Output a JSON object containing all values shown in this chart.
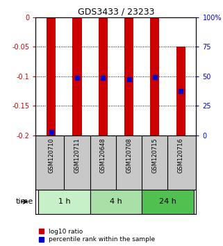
{
  "title": "GDS3433 / 23233",
  "samples": [
    "GSM120710",
    "GSM120711",
    "GSM120648",
    "GSM120708",
    "GSM120715",
    "GSM120716"
  ],
  "groups": [
    {
      "label": "1 h",
      "samples": [
        0,
        1
      ],
      "color": "#c8f0c8"
    },
    {
      "label": "4 h",
      "samples": [
        2,
        3
      ],
      "color": "#a8e0a8"
    },
    {
      "label": "24 h",
      "samples": [
        4,
        5
      ],
      "color": "#50c050"
    }
  ],
  "red_bar_top": [
    0,
    0,
    0,
    0,
    0,
    -0.05
  ],
  "red_bar_bottom": [
    -0.2,
    -0.2,
    -0.2,
    -0.2,
    -0.2,
    -0.2
  ],
  "blue_marker_y": [
    -0.195,
    -0.103,
    -0.103,
    -0.105,
    -0.101,
    -0.125
  ],
  "ylim": [
    -0.2,
    0.0
  ],
  "yticks_left": [
    0,
    -0.05,
    -0.1,
    -0.15,
    -0.2
  ],
  "yticks_right_labels": [
    "100%",
    "75",
    "50",
    "25",
    "0"
  ],
  "yticks_right_vals": [
    0,
    -0.05,
    -0.1,
    -0.15,
    -0.2
  ],
  "left_color": "#cc0000",
  "right_color": "#0000cc",
  "red_color": "#cc0000",
  "blue_color": "#0000cc",
  "bar_width": 0.35,
  "bg_color": "#ffffff",
  "sample_area_color": "#c8c8c8",
  "legend_red_label": "log10 ratio",
  "legend_blue_label": "percentile rank within the sample",
  "time_label": "time"
}
